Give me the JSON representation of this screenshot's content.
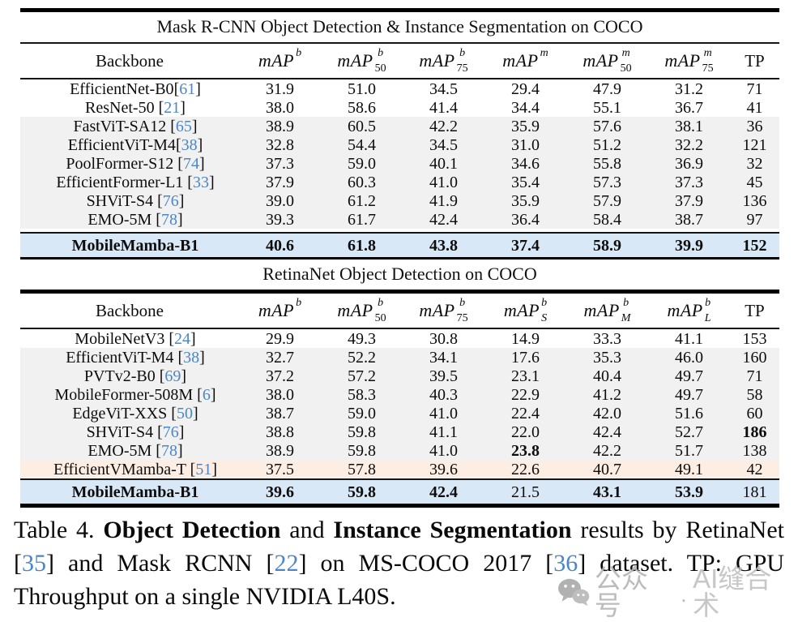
{
  "misc": {
    "cite_open": "[",
    "cite_close": "]"
  },
  "colors": {
    "citation_blue": "#4a86c8",
    "highlight_blue_row": "#d9e8f7",
    "stripe_gray_row": "#f1f1f1",
    "highlight_pink_row": "#fdeee3",
    "rule_black": "#000000",
    "watermark_gray": "#b5b5b5"
  },
  "table1": {
    "title": "Mask R-CNN Object Detection & Instance Segmentation on COCO",
    "columns": [
      {
        "label": "Backbone"
      },
      {
        "base": "mAP",
        "sup": "b"
      },
      {
        "base": "mAP",
        "sup": "b",
        "sub": "50"
      },
      {
        "base": "mAP",
        "sup": "b",
        "sub": "75"
      },
      {
        "base": "mAP",
        "sup": "m"
      },
      {
        "base": "mAP",
        "sup": "m",
        "sub": "50"
      },
      {
        "base": "mAP",
        "sup": "m",
        "sub": "75"
      },
      {
        "label": "TP"
      }
    ],
    "rows": [
      {
        "name": "EfficientNet-B0",
        "cite": "61",
        "space": false,
        "bg": "white",
        "values": [
          "31.9",
          "51.0",
          "34.5",
          "29.4",
          "47.9",
          "31.2",
          "71"
        ]
      },
      {
        "name": "ResNet-50",
        "cite": "21",
        "space": true,
        "bg": "white",
        "values": [
          "38.0",
          "58.6",
          "41.4",
          "34.4",
          "55.1",
          "36.7",
          "41"
        ]
      },
      {
        "name": "FastViT-SA12",
        "cite": "65",
        "space": true,
        "bg": "gray",
        "values": [
          "38.9",
          "60.5",
          "42.2",
          "35.9",
          "57.6",
          "38.1",
          "36"
        ]
      },
      {
        "name": "EfficientViT-M4",
        "cite": "38",
        "space": false,
        "bg": "gray",
        "values": [
          "32.8",
          "54.4",
          "34.5",
          "31.0",
          "51.2",
          "32.2",
          "121"
        ]
      },
      {
        "name": "PoolFormer-S12",
        "cite": "74",
        "space": true,
        "bg": "gray",
        "values": [
          "37.3",
          "59.0",
          "40.1",
          "34.6",
          "55.8",
          "36.9",
          "32"
        ]
      },
      {
        "name": "EfficientFormer-L1",
        "cite": "33",
        "space": true,
        "bg": "gray",
        "values": [
          "37.9",
          "60.3",
          "41.0",
          "35.4",
          "57.3",
          "37.3",
          "45"
        ]
      },
      {
        "name": "SHViT-S4",
        "cite": "76",
        "space": true,
        "bg": "gray",
        "values": [
          "39.0",
          "61.2",
          "41.9",
          "35.9",
          "57.9",
          "37.9",
          "136"
        ]
      },
      {
        "name": "EMO-5M",
        "cite": "78",
        "space": true,
        "bg": "gray",
        "values": [
          "39.3",
          "61.7",
          "42.4",
          "36.4",
          "58.4",
          "38.7",
          "97"
        ]
      }
    ],
    "highlight": {
      "name": "MobileMamba-B1",
      "cite": null,
      "bold_name": true,
      "bg": "blue",
      "values": [
        "40.6",
        "61.8",
        "43.8",
        "37.4",
        "58.9",
        "39.9",
        "152"
      ],
      "bold": [
        0,
        1,
        2,
        3,
        4,
        5,
        6
      ]
    }
  },
  "table2": {
    "title": "RetinaNet Object Detection on COCO",
    "columns": [
      {
        "label": "Backbone"
      },
      {
        "base": "mAP",
        "sup": "b"
      },
      {
        "base": "mAP",
        "sup": "b",
        "sub": "50"
      },
      {
        "base": "mAP",
        "sup": "b",
        "sub": "75"
      },
      {
        "base": "mAP",
        "sup": "b",
        "sub": "S"
      },
      {
        "base": "mAP",
        "sup": "b",
        "sub": "M"
      },
      {
        "base": "mAP",
        "sup": "b",
        "sub": "L"
      },
      {
        "label": "TP"
      }
    ],
    "rows": [
      {
        "name": "MobileNetV3",
        "cite": "24",
        "space": true,
        "bg": "white",
        "values": [
          "29.9",
          "49.3",
          "30.8",
          "14.9",
          "33.3",
          "41.1",
          "153"
        ]
      },
      {
        "name": "EfficientViT-M4",
        "cite": "38",
        "space": true,
        "bg": "gray",
        "values": [
          "32.7",
          "52.2",
          "34.1",
          "17.6",
          "35.3",
          "46.0",
          "160"
        ]
      },
      {
        "name": "PVTv2-B0",
        "cite": "69",
        "space": true,
        "bg": "gray",
        "values": [
          "37.2",
          "57.2",
          "39.5",
          "23.1",
          "40.4",
          "49.7",
          "71"
        ]
      },
      {
        "name": "MobileFormer-508M",
        "cite": "6",
        "space": true,
        "bg": "gray",
        "values": [
          "38.0",
          "58.3",
          "40.3",
          "22.9",
          "41.2",
          "49.7",
          "58"
        ]
      },
      {
        "name": "EdgeViT-XXS",
        "cite": "50",
        "space": true,
        "bg": "gray",
        "values": [
          "38.7",
          "59.0",
          "41.0",
          "22.4",
          "42.0",
          "51.6",
          "60"
        ]
      },
      {
        "name": "SHViT-S4",
        "cite": "76",
        "space": true,
        "bg": "gray",
        "values": [
          "38.8",
          "59.8",
          "41.1",
          "22.0",
          "42.4",
          "52.7",
          "186"
        ],
        "bold": [
          6
        ]
      },
      {
        "name": "EMO-5M",
        "cite": "78",
        "space": true,
        "bg": "gray",
        "values": [
          "38.9",
          "59.8",
          "41.0",
          "23.8",
          "42.2",
          "51.7",
          "138"
        ],
        "bold": [
          3
        ]
      },
      {
        "name": "EfficientVMamba-T",
        "cite": "51",
        "space": true,
        "bg": "pink",
        "values": [
          "37.5",
          "57.8",
          "39.6",
          "22.6",
          "40.7",
          "49.1",
          "42"
        ]
      }
    ],
    "highlight": {
      "name": "MobileMamba-B1",
      "cite": null,
      "bold_name": true,
      "bg": "blue",
      "values": [
        "39.6",
        "59.8",
        "42.4",
        "21.5",
        "43.1",
        "53.9",
        "181"
      ],
      "bold": [
        0,
        1,
        2,
        4,
        5
      ]
    }
  },
  "caption": {
    "segments": [
      {
        "t": "Table 4. "
      },
      {
        "t": "Object Detection",
        "b": true
      },
      {
        "t": " and "
      },
      {
        "t": "Instance Segmentation",
        "b": true
      },
      {
        "t": " results by RetinaNet ["
      },
      {
        "t": "35",
        "c": true
      },
      {
        "t": "] and Mask RCNN ["
      },
      {
        "t": "22",
        "c": true
      },
      {
        "t": "] on MS-COCO 2017 ["
      },
      {
        "t": "36",
        "c": true
      },
      {
        "t": "] dataset. TP: GPU Throughput on a single NVIDIA L40S."
      }
    ]
  },
  "watermark": {
    "name": "公众号",
    "sep": ".",
    "brand": "AI缝合术"
  }
}
